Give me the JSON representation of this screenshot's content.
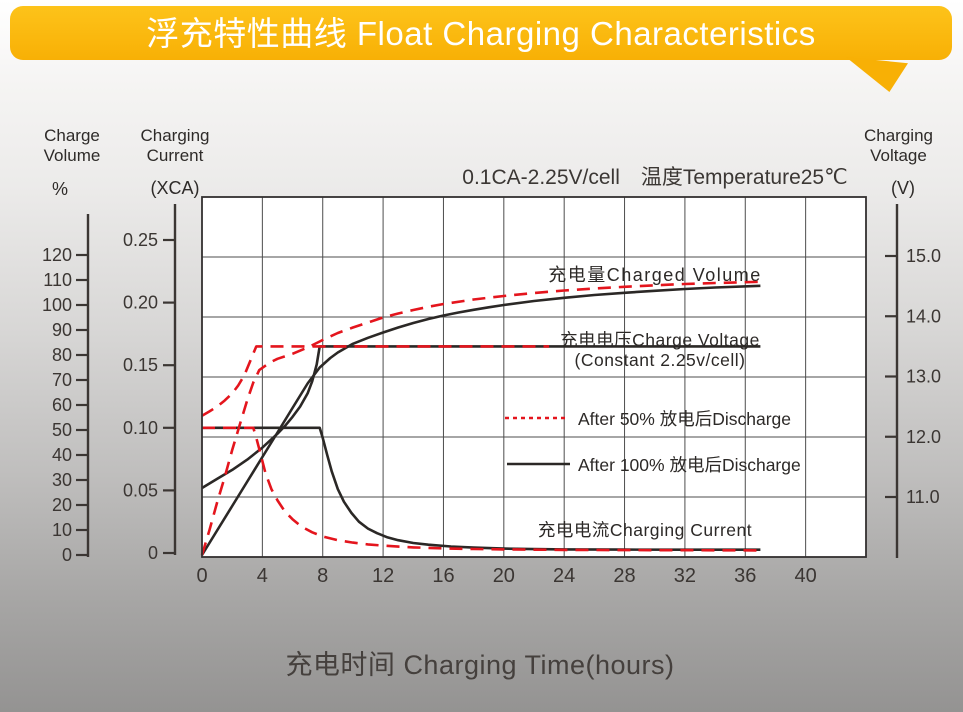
{
  "banner": {
    "title": "浮充特性曲线 Float Charging Characteristics"
  },
  "colors": {
    "banner": "#f8b005",
    "banner_light": "#fdc31a",
    "red": "#e4151d",
    "black": "#2b2826"
  },
  "axis_titles": {
    "volume": {
      "line1": "Charge",
      "line2": "Volume",
      "unit": "%"
    },
    "current": {
      "line1": "Charging",
      "line2": "Current",
      "unit": "(XCA)"
    },
    "voltage": {
      "line1": "Charging",
      "line2": "Voltage",
      "unit": "(V)"
    }
  },
  "annotations": {
    "condition": "0.1CA-2.25V/cell　温度Temperature25℃",
    "charged_volume": "充电量Charged Volume",
    "charge_voltage_line1": "充电电压Charge Voltage",
    "charge_voltage_line2": "(Constant 2.25v/cell)",
    "charging_current": "充电电流Charging Current",
    "x_axis_title": "充电时间 Charging Time(hours)"
  },
  "legend": {
    "items": [
      {
        "label": "After 50% 放电后Discharge",
        "style": "red-dashed"
      },
      {
        "label": "After 100% 放电后Discharge",
        "style": "black-solid"
      }
    ]
  },
  "chart_data": {
    "type": "line",
    "title": "浮充特性曲线 Float Charging Characteristics",
    "condition": "0.1CA-2.25V/cell, Temperature 25℃",
    "grid": true,
    "x_axis": {
      "label": "充电时间 Charging Time(hours)",
      "range": [
        0,
        44
      ],
      "ticks": [
        "0",
        "4",
        "8",
        "12",
        "16",
        "20",
        "24",
        "28",
        "32",
        "36",
        "40"
      ]
    },
    "y_axes": {
      "percent": {
        "name": "Charge Volume",
        "unit": "%",
        "range": [
          0,
          120
        ],
        "ticks": [
          "0",
          "10",
          "20",
          "30",
          "40",
          "50",
          "60",
          "70",
          "80",
          "90",
          "100",
          "110",
          "120"
        ]
      },
      "xca": {
        "name": "Charging Current",
        "unit": "(XCA)",
        "range": [
          0,
          0.25
        ],
        "ticks": [
          "0",
          "0.05",
          "0.10",
          "0.15",
          "0.20",
          "0.25"
        ]
      },
      "volt": {
        "name": "Charging Voltage",
        "unit": "(V)",
        "range": [
          11,
          15
        ],
        "ticks": [
          "11.0",
          "12.0",
          "13.0",
          "14.0",
          "15.0"
        ]
      }
    },
    "series": [
      {
        "id": "volume-100",
        "name": "充电量Charged Volume (After 100% 放电后Discharge)",
        "axis": "percent",
        "style": "black-solid",
        "points": [
          [
            0,
            0
          ],
          [
            1,
            9.8
          ],
          [
            2,
            19.6
          ],
          [
            3,
            29.4
          ],
          [
            4,
            39.2
          ],
          [
            5,
            49
          ],
          [
            6,
            58.8
          ],
          [
            7,
            68.6
          ],
          [
            7.8,
            75
          ],
          [
            8.5,
            78.8
          ],
          [
            9,
            81
          ],
          [
            10,
            84.5
          ],
          [
            11,
            86.9
          ],
          [
            12,
            89
          ],
          [
            13,
            91
          ],
          [
            14,
            92.8
          ],
          [
            15,
            94.4
          ],
          [
            16,
            95.8
          ],
          [
            17,
            97
          ],
          [
            18,
            98.1
          ],
          [
            19,
            99.1
          ],
          [
            20,
            100
          ],
          [
            22,
            101.6
          ],
          [
            24,
            102.9
          ],
          [
            26,
            104
          ],
          [
            28,
            104.9
          ],
          [
            30,
            105.7
          ],
          [
            32,
            106.4
          ],
          [
            34,
            107
          ],
          [
            37,
            107.7
          ]
        ]
      },
      {
        "id": "voltage-100",
        "name": "充电电压Charge Voltage (After 100% 放电后Discharge)",
        "axis": "volt",
        "style": "black-solid",
        "points": [
          [
            0,
            11.15
          ],
          [
            1,
            11.3
          ],
          [
            2,
            11.45
          ],
          [
            3,
            11.62
          ],
          [
            4,
            11.82
          ],
          [
            5,
            12.05
          ],
          [
            5.5,
            12.18
          ],
          [
            6,
            12.33
          ],
          [
            6.5,
            12.5
          ],
          [
            7,
            12.72
          ],
          [
            7.3,
            12.92
          ],
          [
            7.6,
            13.2
          ],
          [
            7.8,
            13.5
          ],
          [
            37,
            13.5
          ]
        ]
      },
      {
        "id": "current-100",
        "name": "充电电流Charging Current (After 100% 放电后Discharge)",
        "axis": "xca",
        "style": "black-solid",
        "points": [
          [
            0,
            0.1
          ],
          [
            7.8,
            0.1
          ],
          [
            8,
            0.092
          ],
          [
            8.3,
            0.078
          ],
          [
            8.6,
            0.065
          ],
          [
            9,
            0.051
          ],
          [
            9.4,
            0.041
          ],
          [
            9.9,
            0.032
          ],
          [
            10.4,
            0.025
          ],
          [
            11,
            0.0195
          ],
          [
            11.6,
            0.0158
          ],
          [
            12.3,
            0.0125
          ],
          [
            13,
            0.0102
          ],
          [
            14,
            0.008
          ],
          [
            15,
            0.0066
          ],
          [
            16.5,
            0.0052
          ],
          [
            18,
            0.0043
          ],
          [
            20,
            0.0035
          ],
          [
            22,
            0.0031
          ],
          [
            24,
            0.0029
          ],
          [
            28,
            0.0027
          ],
          [
            32,
            0.0026
          ],
          [
            37,
            0.0026
          ]
        ]
      },
      {
        "id": "volume-50",
        "name": "充电量Charged Volume (After 50% 放电后Discharge)",
        "axis": "percent",
        "style": "red-dashed",
        "points": [
          [
            0,
            0
          ],
          [
            0.5,
            10
          ],
          [
            1,
            21
          ],
          [
            1.5,
            31
          ],
          [
            2,
            42
          ],
          [
            2.5,
            52
          ],
          [
            3,
            62
          ],
          [
            3.4,
            69
          ],
          [
            3.8,
            74
          ],
          [
            4.5,
            77
          ],
          [
            5,
            78.5
          ],
          [
            6,
            80.5
          ],
          [
            7,
            83
          ],
          [
            8,
            86
          ],
          [
            9,
            88.8
          ],
          [
            10,
            91
          ],
          [
            11,
            93
          ],
          [
            12,
            95
          ],
          [
            13,
            96.6
          ],
          [
            14,
            98
          ],
          [
            15,
            99.3
          ],
          [
            16,
            100.4
          ],
          [
            18,
            102.2
          ],
          [
            20,
            103.6
          ],
          [
            22,
            104.8
          ],
          [
            24,
            105.8
          ],
          [
            26,
            106.6
          ],
          [
            28,
            107.3
          ],
          [
            30,
            107.9
          ],
          [
            32,
            108.4
          ],
          [
            34,
            108.8
          ],
          [
            37,
            109.3
          ]
        ]
      },
      {
        "id": "voltage-50",
        "name": "充电电压Charge Voltage (After 50% 放电后Discharge)",
        "axis": "volt",
        "style": "red-dashed",
        "points": [
          [
            0,
            12.35
          ],
          [
            0.5,
            12.42
          ],
          [
            1,
            12.5
          ],
          [
            1.5,
            12.6
          ],
          [
            2,
            12.72
          ],
          [
            2.4,
            12.85
          ],
          [
            2.8,
            13.02
          ],
          [
            3.1,
            13.2
          ],
          [
            3.4,
            13.38
          ],
          [
            3.6,
            13.5
          ],
          [
            23,
            13.5
          ]
        ]
      },
      {
        "id": "current-50",
        "name": "充电电流Charging Current (After 50% 放电后Discharge)",
        "axis": "xca",
        "style": "red-dashed",
        "points": [
          [
            0,
            0.1
          ],
          [
            3.4,
            0.1
          ],
          [
            3.6,
            0.092
          ],
          [
            3.9,
            0.078
          ],
          [
            4.2,
            0.064
          ],
          [
            4.6,
            0.051
          ],
          [
            5,
            0.042
          ],
          [
            5.5,
            0.033
          ],
          [
            6,
            0.027
          ],
          [
            6.6,
            0.021
          ],
          [
            7.3,
            0.0165
          ],
          [
            8,
            0.0132
          ],
          [
            9,
            0.0102
          ],
          [
            10,
            0.0083
          ],
          [
            11,
            0.0069
          ],
          [
            12,
            0.0059
          ],
          [
            13,
            0.0051
          ],
          [
            14,
            0.0045
          ],
          [
            16,
            0.0037
          ],
          [
            18,
            0.0032
          ],
          [
            20,
            0.0029
          ],
          [
            24,
            0.0025
          ],
          [
            28,
            0.0023
          ],
          [
            32,
            0.0022
          ],
          [
            37,
            0.0021
          ]
        ]
      }
    ]
  }
}
